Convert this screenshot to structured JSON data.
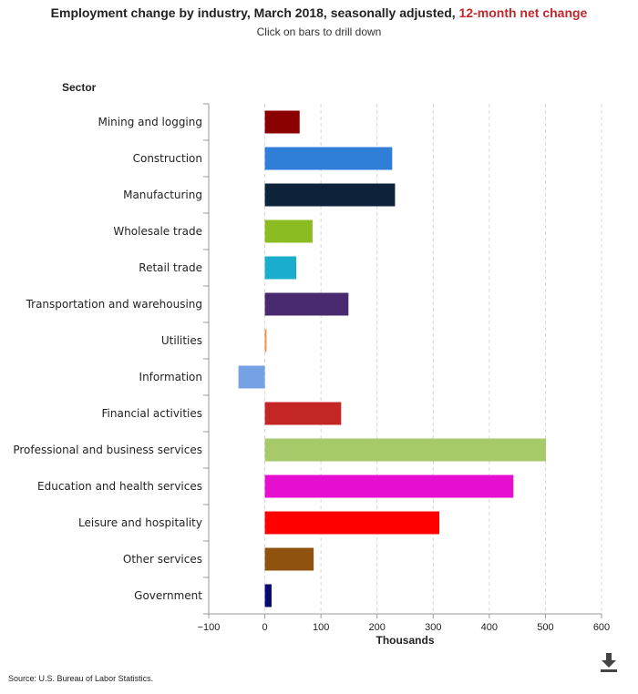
{
  "header": {
    "title_main": "Employment change by industry, March 2018, seasonally adjusted, ",
    "title_accent": "12-month net change",
    "subtitle": "Click on bars to drill down"
  },
  "footer": {
    "source": "Source: U.S. Bureau of Labor Statistics.",
    "download_icon": "download-icon"
  },
  "chart_data": {
    "type": "bar",
    "orientation": "horizontal",
    "categories_title": "Sector",
    "categories": [
      "Mining and logging",
      "Construction",
      "Manufacturing",
      "Wholesale trade",
      "Retail trade",
      "Transportation and warehousing",
      "Utilities",
      "Information",
      "Financial activities",
      "Professional and business services",
      "Education and health services",
      "Leisure and hospitality",
      "Other services",
      "Government"
    ],
    "values": [
      62,
      227,
      232,
      85,
      56,
      149,
      3,
      -47,
      136,
      501,
      443,
      311,
      87,
      12
    ],
    "colors": [
      "#8b0000",
      "#2f7ed8",
      "#0d233a",
      "#8bbc21",
      "#1aadce",
      "#492970",
      "#f28f43",
      "#77a1e5",
      "#c42525",
      "#a6c96a",
      "#e60ecf",
      "#ff0000",
      "#8f530f",
      "#0a0a6e"
    ],
    "xlabel": "Thousands",
    "xlim": [
      -100,
      600
    ],
    "xticks": [
      -100,
      0,
      100,
      200,
      300,
      400,
      500,
      600
    ],
    "grid": "vertical-dashed"
  }
}
